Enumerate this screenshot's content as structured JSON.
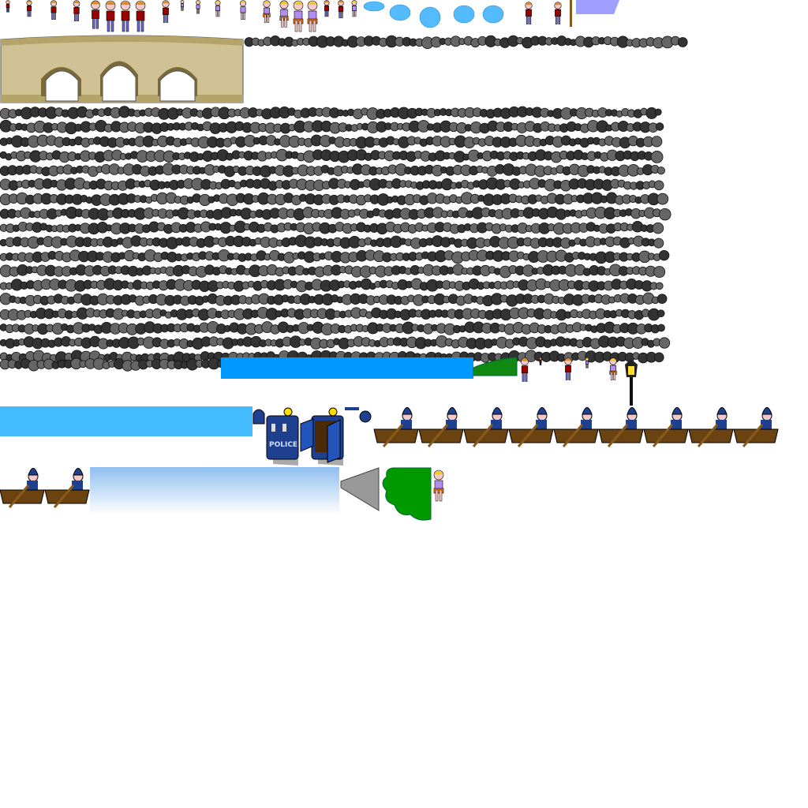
{
  "sheet": {
    "police_box_label": "POLICE",
    "colors": {
      "stone_dark": "#333333",
      "stone_light": "#666666",
      "bridge": "#cfc194",
      "bridge_dark": "#b5a46a",
      "water_bar": "#0099ff",
      "water_light": "#44bbff",
      "sky_gradient_top": "#90bff0",
      "police_blue": "#1f3f8f",
      "boat_brown": "#6b4310",
      "grass": "#118811",
      "bush": "#009900",
      "splash": "#55bbff",
      "lavender": "#9f9fff"
    },
    "icons": [
      "child-sprite",
      "girl-sprite",
      "water-splash",
      "bridge",
      "stone-row",
      "police-box",
      "police-hat",
      "rowboat-policeman",
      "lamp-post",
      "bush",
      "ramp"
    ]
  }
}
